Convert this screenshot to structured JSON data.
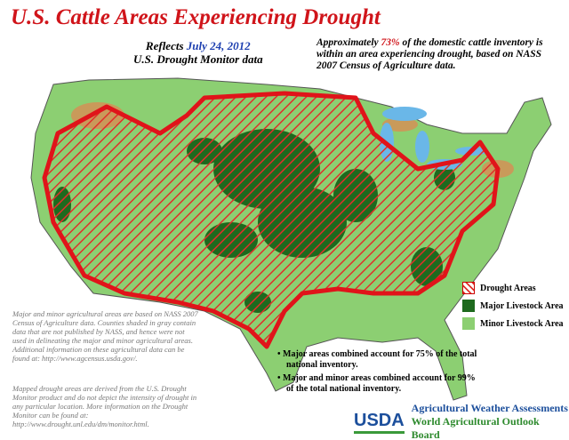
{
  "title": "U.S. Cattle Areas Experiencing Drought",
  "subtitle": {
    "prefix": "Reflects",
    "date": "July 24, 2012",
    "source": "U.S. Drought Monitor data"
  },
  "summary": {
    "before": "Approximately",
    "percent": "73%",
    "after": "of the domestic cattle inventory is within an area experiencing drought, based on NASS 2007 Census of Agriculture data."
  },
  "legend": [
    "Drought Areas",
    "Major Livestock Area",
    "Minor Livestock Area"
  ],
  "notes": [
    "Major and minor agricultural areas are based on NASS 2007 Census of Agriculture data. Counties shaded in gray contain data that are not published by NASS, and hence were not used in delineating the major and minor agricultural areas. Additional information on these agricultural data can be found at: http://www.agcensus.usda.gov/.",
    "Mapped drought areas are derived from the U.S. Drought Monitor product and do not depict the intensity of drought in any particular location. More information on the Drought Monitor can be found at: http://www.drought.unl.edu/dm/monitor.html."
  ],
  "bullets": [
    "Major areas combined account for 75% of the total national inventory.",
    "Major and minor areas combined account for 99% of the total national inventory."
  ],
  "footer": {
    "logo": "USDA",
    "line1": "Agricultural Weather Assessments",
    "line2": "World Agricultural Outlook Board"
  }
}
